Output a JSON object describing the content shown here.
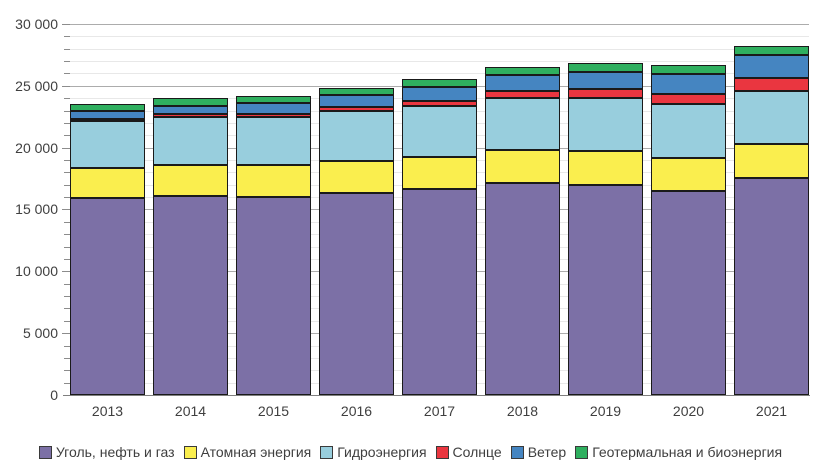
{
  "chart_data": {
    "type": "bar",
    "stacked": true,
    "title": "",
    "unit_hint": "",
    "categories": [
      "2013",
      "2014",
      "2015",
      "2016",
      "2017",
      "2018",
      "2019",
      "2020",
      "2021"
    ],
    "series": [
      {
        "key": "fossil",
        "name": "Уголь, нефть и газ",
        "color": "#7C70A6",
        "values": [
          15900,
          16090,
          16040,
          16310,
          16650,
          17120,
          16980,
          16500,
          17520
        ]
      },
      {
        "key": "nuclear",
        "name": "Атомная энергия",
        "color": "#FAEE4E",
        "values": [
          2480,
          2535,
          2570,
          2605,
          2635,
          2700,
          2790,
          2675,
          2775
        ]
      },
      {
        "key": "hydro",
        "name": "Гидроэнергия",
        "color": "#98CEDD",
        "values": [
          3790,
          3890,
          3890,
          4030,
          4060,
          4190,
          4220,
          4350,
          4270
        ]
      },
      {
        "key": "solar",
        "name": "Солнце",
        "color": "#EA3640",
        "values": [
          135,
          190,
          255,
          330,
          445,
          575,
          725,
          855,
          1035
        ]
      },
      {
        "key": "wind",
        "name": "Ветер",
        "color": "#4585C1",
        "values": [
          645,
          715,
          830,
          960,
          1135,
          1270,
          1420,
          1600,
          1860
        ]
      },
      {
        "key": "geo_bio",
        "name": "Геотермальная и биоэнергия",
        "color": "#2FAF5F",
        "values": [
          545,
          580,
          605,
          630,
          655,
          685,
          710,
          725,
          760
        ]
      }
    ],
    "y_axis": {
      "min": 0,
      "max": 30000,
      "major_step": 5000,
      "minor_step": 1000,
      "major_tick_values": [
        0,
        5000,
        10000,
        15000,
        20000,
        25000,
        30000
      ],
      "major_tick_labels": [
        "0",
        "5 000",
        "10 000",
        "15 000",
        "20 000",
        "25 000",
        "30 000"
      ]
    },
    "grid": {
      "major_color": "#ACACAC",
      "minor_color": "#E8E8E8"
    },
    "bar_border_color": "#1A1A1A",
    "axis_line_color": "#7F7F7F",
    "text_color": "#3F3F3F",
    "legend_position": "bottom"
  }
}
